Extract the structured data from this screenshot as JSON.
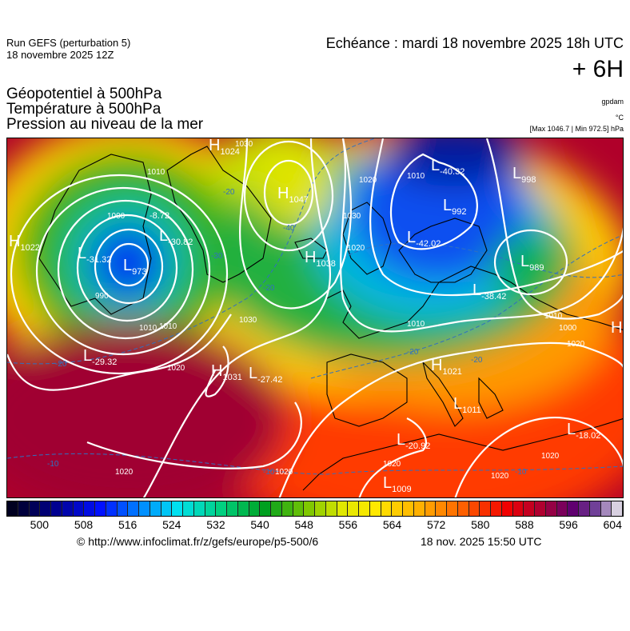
{
  "header": {
    "run": "Run GEFS (perturbation 5)",
    "run_date": "18 novembre 2025 12Z",
    "echeance": "Echéance : mardi 18 novembre 2025 18h UTC",
    "lead": "+ 6H",
    "fields": [
      "Géopotentiel à 500hPa",
      "Température à 500hPa",
      "Pression au niveau de la mer"
    ],
    "unit_geopot": "gpdam",
    "unit_temp": "°C",
    "unit_pressure": "[Max 1046.7 | Min 972.5] hPa"
  },
  "map": {
    "centers": [
      {
        "letter": "H",
        "value": "1022"
      },
      {
        "letter": "L",
        "value": "973"
      },
      {
        "letter": "L",
        "value": "-31.32"
      },
      {
        "letter": "L",
        "value": "-30.82"
      },
      {
        "letter": "",
        "value": "-8.72"
      },
      {
        "letter": "L",
        "value": "-29.32"
      },
      {
        "letter": "H",
        "value": "1024"
      },
      {
        "letter": "H",
        "value": "1047"
      },
      {
        "letter": "H",
        "value": "1038"
      },
      {
        "letter": "H",
        "value": "1031"
      },
      {
        "letter": "L",
        "value": "-27.42"
      },
      {
        "letter": "L",
        "value": "-40.32"
      },
      {
        "letter": "L",
        "value": "998"
      },
      {
        "letter": "L",
        "value": "992"
      },
      {
        "letter": "L",
        "value": "-42.02"
      },
      {
        "letter": "L",
        "value": "-38.42"
      },
      {
        "letter": "L",
        "value": "989"
      },
      {
        "letter": "H",
        "value": ""
      },
      {
        "letter": "H",
        "value": "1021"
      },
      {
        "letter": "L",
        "value": "1011"
      },
      {
        "letter": "L",
        "value": "-18.02"
      },
      {
        "letter": "L",
        "value": "-20.92"
      },
      {
        "letter": "L",
        "value": "1009"
      }
    ],
    "isobar_labels": [
      "1010",
      "1000",
      "990",
      "1010",
      "1010",
      "1020",
      "1030",
      "1030",
      "1020",
      "1010",
      "1030",
      "1020",
      "1010",
      "1000",
      "1010",
      "1020",
      "1020",
      "1020",
      "1020",
      "1020",
      "1020"
    ],
    "isotherm_labels": [
      "-20",
      "-20",
      "-30",
      "-20",
      "-40",
      "-20",
      "-20",
      "-10",
      "-10",
      "-10"
    ]
  },
  "colorbar": {
    "ticks": [
      "500",
      "508",
      "516",
      "524",
      "532",
      "540",
      "548",
      "556",
      "564",
      "572",
      "580",
      "588",
      "596",
      "604"
    ],
    "range": [
      494,
      606
    ],
    "step": 2
  },
  "footer": {
    "credit": "© http://www.infoclimat.fr/z/gefs/europe/p5-500/6",
    "generated": "18 nov. 2025 15:50 UTC"
  }
}
